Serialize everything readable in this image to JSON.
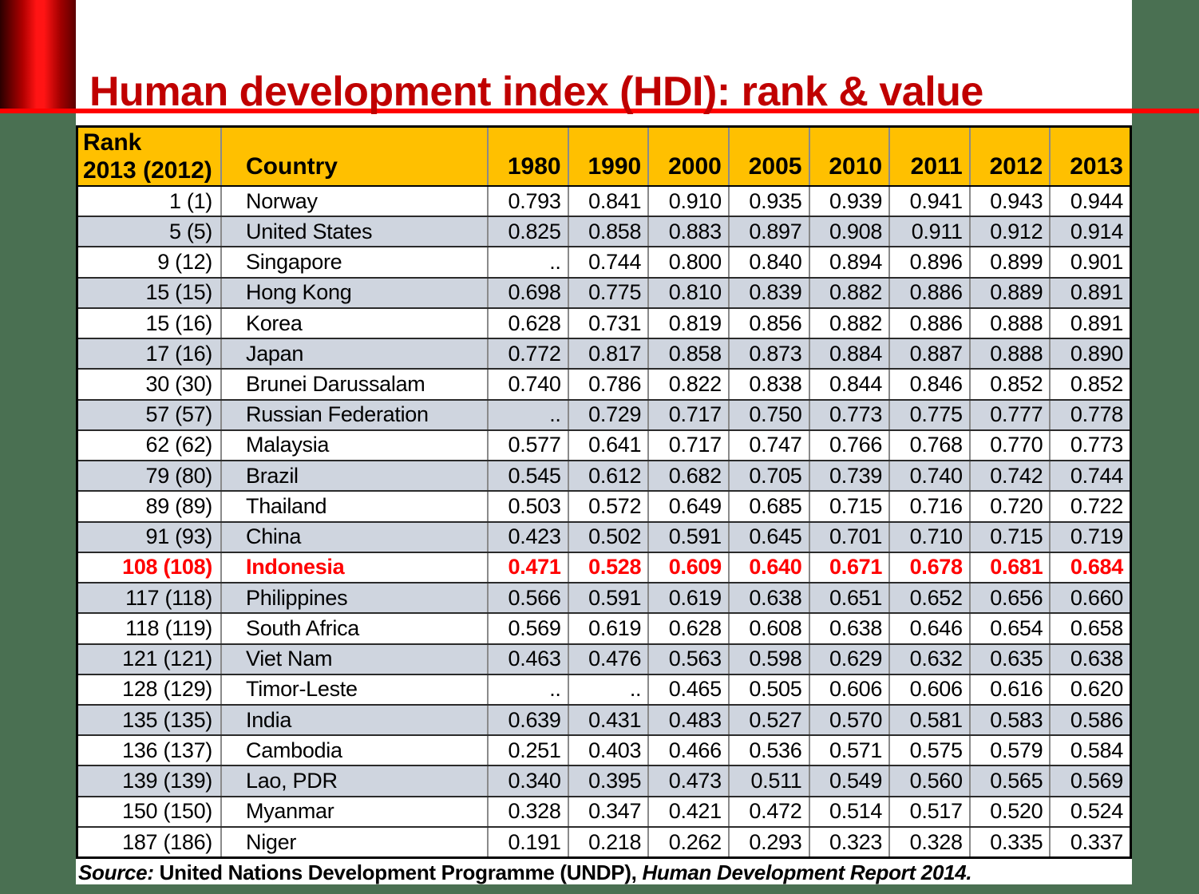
{
  "slide": {
    "title": "Human development index (HDI): rank & value",
    "source": {
      "label": "Source:",
      "publisher": " United Nations Development Programme (UNDP), ",
      "report": "Human Development Report 2014."
    },
    "colors": {
      "background_green": "#4A7052",
      "title_red": "#C00000",
      "accent_line_red": "#FF0000",
      "header_orange": "#FFC000",
      "row_gray": "#CFD5DF",
      "highlight_red": "#FF0000"
    }
  },
  "table": {
    "header": {
      "rank_line1": "Rank",
      "rank_line2": "2013 (2012)",
      "country": "Country",
      "years": [
        "1980",
        "1990",
        "2000",
        "2005",
        "2010",
        "2011",
        "2012",
        "2013"
      ]
    },
    "rows": [
      {
        "rank": "1 (1)",
        "country": "Norway",
        "values": [
          "0.793",
          "0.841",
          "0.910",
          "0.935",
          "0.939",
          "0.941",
          "0.943",
          "0.944"
        ],
        "shade": "white",
        "highlight": false
      },
      {
        "rank": "5 (5)",
        "country": "United States",
        "values": [
          "0.825",
          "0.858",
          "0.883",
          "0.897",
          "0.908",
          "0.911",
          "0.912",
          "0.914"
        ],
        "shade": "gray",
        "highlight": false
      },
      {
        "rank": "9 (12)",
        "country": "Singapore",
        "values": [
          "..",
          "0.744",
          "0.800",
          "0.840",
          "0.894",
          "0.896",
          "0.899",
          "0.901"
        ],
        "shade": "white",
        "highlight": false
      },
      {
        "rank": "15 (15)",
        "country": "Hong Kong",
        "values": [
          "0.698",
          "0.775",
          "0.810",
          "0.839",
          "0.882",
          "0.886",
          "0.889",
          "0.891"
        ],
        "shade": "gray",
        "highlight": false
      },
      {
        "rank": "15 (16)",
        "country": "Korea",
        "values": [
          "0.628",
          "0.731",
          "0.819",
          "0.856",
          "0.882",
          "0.886",
          "0.888",
          "0.891"
        ],
        "shade": "white",
        "highlight": false
      },
      {
        "rank": "17 (16)",
        "country": "Japan",
        "values": [
          "0.772",
          "0.817",
          "0.858",
          "0.873",
          "0.884",
          "0.887",
          "0.888",
          "0.890"
        ],
        "shade": "gray",
        "highlight": false
      },
      {
        "rank": "30 (30)",
        "country": "Brunei Darussalam",
        "values": [
          "0.740",
          "0.786",
          "0.822",
          "0.838",
          "0.844",
          "0.846",
          "0.852",
          "0.852"
        ],
        "shade": "white",
        "highlight": false
      },
      {
        "rank": "57 (57)",
        "country": "Russian Federation",
        "values": [
          "..",
          "0.729",
          "0.717",
          "0.750",
          "0.773",
          "0.775",
          "0.777",
          "0.778"
        ],
        "shade": "gray",
        "highlight": false
      },
      {
        "rank": "62 (62)",
        "country": "Malaysia",
        "values": [
          "0.577",
          "0.641",
          "0.717",
          "0.747",
          "0.766",
          "0.768",
          "0.770",
          "0.773"
        ],
        "shade": "white",
        "highlight": false
      },
      {
        "rank": "79 (80)",
        "country": "Brazil",
        "values": [
          "0.545",
          "0.612",
          "0.682",
          "0.705",
          "0.739",
          "0.740",
          "0.742",
          "0.744"
        ],
        "shade": "gray",
        "highlight": false
      },
      {
        "rank": "89 (89)",
        "country": "Thailand",
        "values": [
          "0.503",
          "0.572",
          "0.649",
          "0.685",
          "0.715",
          "0.716",
          "0.720",
          "0.722"
        ],
        "shade": "white",
        "highlight": false
      },
      {
        "rank": "91 (93)",
        "country": "China",
        "values": [
          "0.423",
          "0.502",
          "0.591",
          "0.645",
          "0.701",
          "0.710",
          "0.715",
          "0.719"
        ],
        "shade": "gray",
        "highlight": false
      },
      {
        "rank": "108 (108)",
        "country": "Indonesia",
        "values": [
          "0.471",
          "0.528",
          "0.609",
          "0.640",
          "0.671",
          "0.678",
          "0.681",
          "0.684"
        ],
        "shade": "white",
        "highlight": true
      },
      {
        "rank": "117 (118)",
        "country": "Philippines",
        "values": [
          "0.566",
          "0.591",
          "0.619",
          "0.638",
          "0.651",
          "0.652",
          "0.656",
          "0.660"
        ],
        "shade": "gray",
        "highlight": false
      },
      {
        "rank": "118 (119)",
        "country": "South Africa",
        "values": [
          "0.569",
          "0.619",
          "0.628",
          "0.608",
          "0.638",
          "0.646",
          "0.654",
          "0.658"
        ],
        "shade": "white",
        "highlight": false
      },
      {
        "rank": "121 (121)",
        "country": "Viet Nam",
        "values": [
          "0.463",
          "0.476",
          "0.563",
          "0.598",
          "0.629",
          "0.632",
          "0.635",
          "0.638"
        ],
        "shade": "gray",
        "highlight": false
      },
      {
        "rank": "128 (129)",
        "country": "Timor-Leste",
        "values": [
          "..",
          "..",
          "0.465",
          "0.505",
          "0.606",
          "0.606",
          "0.616",
          "0.620"
        ],
        "shade": "white",
        "highlight": false
      },
      {
        "rank": "135 (135)",
        "country": "India",
        "values": [
          "0.639",
          "0.431",
          "0.483",
          "0.527",
          "0.570",
          "0.581",
          "0.583",
          "0.586"
        ],
        "shade": "gray",
        "highlight": false
      },
      {
        "rank": "136 (137)",
        "country": "Cambodia",
        "values": [
          "0.251",
          "0.403",
          "0.466",
          "0.536",
          "0.571",
          "0.575",
          "0.579",
          "0.584"
        ],
        "shade": "white",
        "highlight": false
      },
      {
        "rank": "139 (139)",
        "country": "Lao, PDR",
        "values": [
          "0.340",
          "0.395",
          "0.473",
          "0.511",
          "0.549",
          "0.560",
          "0.565",
          "0.569"
        ],
        "shade": "gray",
        "highlight": false
      },
      {
        "rank": "150 (150)",
        "country": "Myanmar",
        "values": [
          "0.328",
          "0.347",
          "0.421",
          "0.472",
          "0.514",
          "0.517",
          "0.520",
          "0.524"
        ],
        "shade": "white",
        "highlight": false
      },
      {
        "rank": "187 (186)",
        "country": "Niger",
        "values": [
          "0.191",
          "0.218",
          "0.262",
          "0.293",
          "0.323",
          "0.328",
          "0.335",
          "0.337"
        ],
        "shade": "white",
        "highlight": false
      }
    ]
  }
}
